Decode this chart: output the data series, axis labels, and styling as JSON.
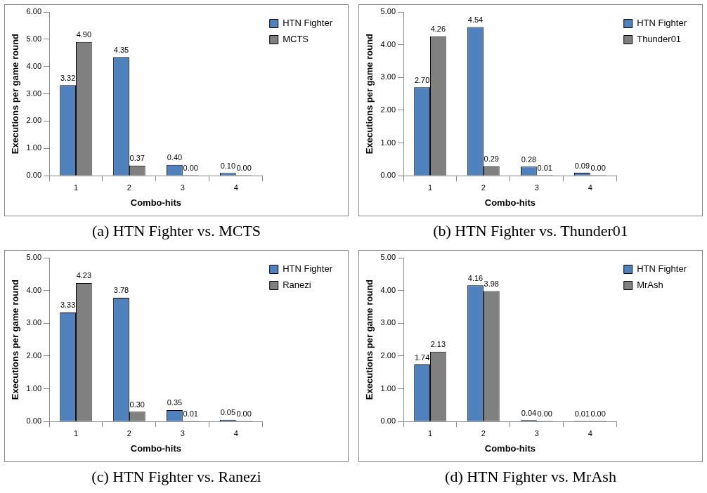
{
  "chart_data": [
    {
      "type": "bar",
      "categories": [
        "1",
        "2",
        "3",
        "4"
      ],
      "xlabel": "Combo-hits",
      "ylabel": "Executions per game round",
      "ylim": [
        0,
        6
      ],
      "yticks": [
        {
          "value": 0,
          "label": "0.00"
        },
        {
          "value": 1,
          "label": "1.00"
        },
        {
          "value": 2,
          "label": "2.00"
        },
        {
          "value": 3,
          "label": "3.00"
        },
        {
          "value": 4,
          "label": "4.00"
        },
        {
          "value": 5,
          "label": "5.00"
        },
        {
          "value": 6,
          "label": "6.00"
        }
      ],
      "grid": false,
      "legend": "top right",
      "annotations": [
        "(a) HTN Fighter vs. MCTS"
      ],
      "series": [
        {
          "name": "HTN Fighter",
          "color": "#4f81bd",
          "values": [
            3.32,
            4.35,
            0.4,
            0.1
          ],
          "value_labels": [
            "3.32",
            "4.35",
            "0.40",
            "0.10"
          ]
        },
        {
          "name": "MCTS",
          "color": "#808080",
          "values": [
            4.9,
            0.37,
            0,
            0
          ],
          "value_labels": [
            "4.90",
            "0.37",
            "0.00",
            "0.00"
          ]
        }
      ]
    },
    {
      "type": "bar",
      "categories": [
        "1",
        "2",
        "3",
        "4"
      ],
      "xlabel": "Combo-hits",
      "ylabel": "Executions per game round",
      "ylim": [
        0,
        5
      ],
      "yticks": [
        {
          "value": 0,
          "label": "0.00"
        },
        {
          "value": 1,
          "label": "1.00"
        },
        {
          "value": 2,
          "label": "2.00"
        },
        {
          "value": 3,
          "label": "3.00"
        },
        {
          "value": 4,
          "label": "4.00"
        },
        {
          "value": 5,
          "label": "5.00"
        }
      ],
      "grid": false,
      "legend": "top right",
      "annotations": [
        "(b) HTN Fighter vs. Thunder01"
      ],
      "series": [
        {
          "name": "HTN Fighter",
          "color": "#4f81bd",
          "values": [
            2.7,
            4.54,
            0.28,
            0.09
          ],
          "value_labels": [
            "2.70",
            "4.54",
            "0.28",
            "0.09"
          ]
        },
        {
          "name": "Thunder01",
          "color": "#808080",
          "values": [
            4.26,
            0.29,
            0.01,
            0
          ],
          "value_labels": [
            "4.26",
            "0.29",
            "0.01",
            "0.00"
          ]
        }
      ]
    },
    {
      "type": "bar",
      "categories": [
        "1",
        "2",
        "3",
        "4"
      ],
      "xlabel": "Combo-hits",
      "ylabel": "Executions per game round",
      "ylim": [
        0,
        5
      ],
      "yticks": [
        {
          "value": 0,
          "label": "0.00"
        },
        {
          "value": 1,
          "label": "1.00"
        },
        {
          "value": 2,
          "label": "2.00"
        },
        {
          "value": 3,
          "label": "3.00"
        },
        {
          "value": 4,
          "label": "4.00"
        },
        {
          "value": 5,
          "label": "5.00"
        }
      ],
      "grid": false,
      "legend": "top right",
      "annotations": [
        "(c) HTN Fighter vs. Ranezi"
      ],
      "series": [
        {
          "name": "HTN Fighter",
          "color": "#4f81bd",
          "values": [
            3.33,
            3.78,
            0.35,
            0.05
          ],
          "value_labels": [
            "3.33",
            "3.78",
            "0.35",
            "0.05"
          ]
        },
        {
          "name": "Ranezi",
          "color": "#808080",
          "values": [
            4.23,
            0.3,
            0.01,
            0
          ],
          "value_labels": [
            "4.23",
            "0.30",
            "0.01",
            "0.00"
          ]
        }
      ]
    },
    {
      "type": "bar",
      "categories": [
        "1",
        "2",
        "3",
        "4"
      ],
      "xlabel": "Combo-hits",
      "ylabel": "Executions per game round",
      "ylim": [
        0,
        5
      ],
      "yticks": [
        {
          "value": 0,
          "label": "0.00"
        },
        {
          "value": 1,
          "label": "1.00"
        },
        {
          "value": 2,
          "label": "2.00"
        },
        {
          "value": 3,
          "label": "3.00"
        },
        {
          "value": 4,
          "label": "4.00"
        },
        {
          "value": 5,
          "label": "5.00"
        }
      ],
      "grid": false,
      "legend": "top right",
      "annotations": [
        "(d) HTN Fighter vs. MrAsh"
      ],
      "series": [
        {
          "name": "HTN Fighter",
          "color": "#4f81bd",
          "values": [
            1.74,
            4.16,
            0.04,
            0.01
          ],
          "value_labels": [
            "1.74",
            "4.16",
            "0.04",
            "0.01"
          ]
        },
        {
          "name": "MrAsh",
          "color": "#808080",
          "values": [
            2.13,
            3.98,
            0,
            0
          ],
          "value_labels": [
            "2.13",
            "3.98",
            "0.00",
            "0.00"
          ]
        }
      ]
    }
  ]
}
